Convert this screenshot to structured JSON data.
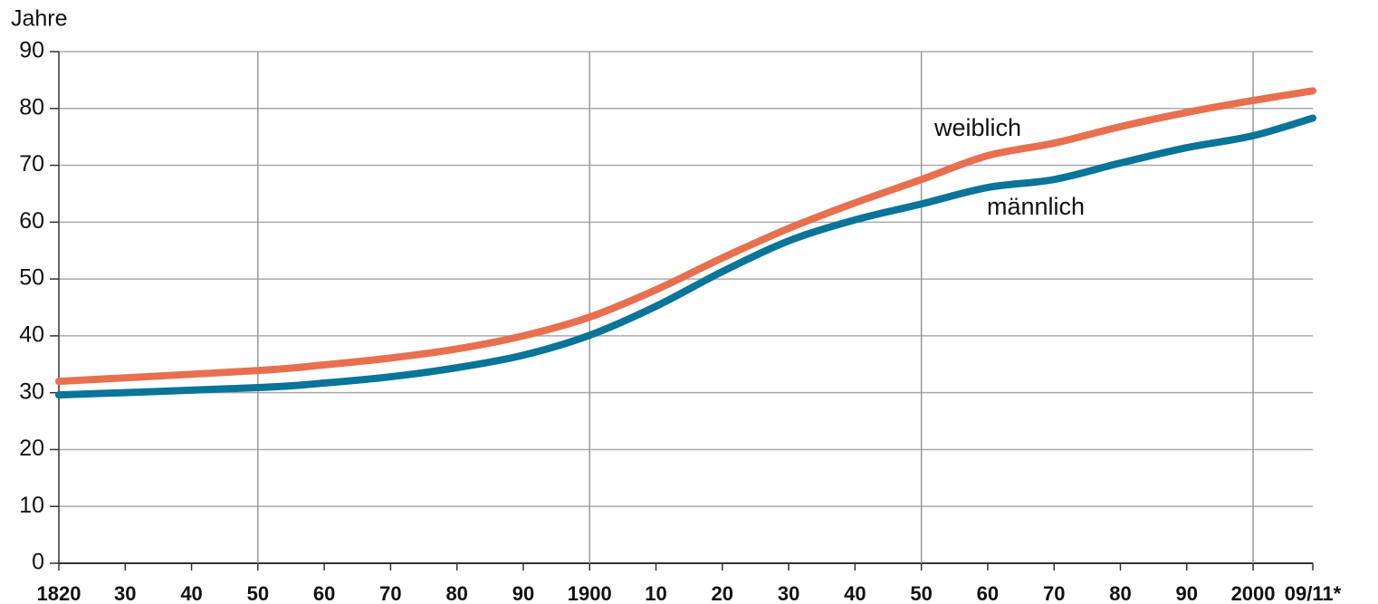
{
  "chart_data": {
    "type": "line",
    "y_label": "Jahre",
    "series": [
      {
        "name": "weiblich",
        "color": "#e8704f",
        "x": [
          1820,
          1850,
          1860,
          1870,
          1880,
          1890,
          1900,
          1910,
          1920,
          1930,
          1940,
          1950,
          1960,
          1970,
          1980,
          1990,
          2000,
          2009
        ],
        "values": [
          32.0,
          33.9,
          34.9,
          36.1,
          37.7,
          40.0,
          43.3,
          48.1,
          53.7,
          58.9,
          63.4,
          67.5,
          71.7,
          73.9,
          76.8,
          79.3,
          81.4,
          83.1
        ]
      },
      {
        "name": "männlich",
        "color": "#0a7499",
        "x": [
          1820,
          1850,
          1860,
          1870,
          1880,
          1890,
          1900,
          1910,
          1920,
          1930,
          1940,
          1950,
          1960,
          1970,
          1980,
          1990,
          2000,
          2009
        ],
        "values": [
          29.6,
          30.9,
          31.7,
          32.8,
          34.4,
          36.6,
          40.1,
          45.2,
          51.3,
          56.7,
          60.4,
          63.2,
          66.1,
          67.5,
          70.4,
          73.1,
          75.2,
          78.3
        ]
      }
    ],
    "xlim": [
      1820,
      2009
    ],
    "ylim": [
      0,
      90
    ],
    "yticks": [
      0,
      10,
      20,
      30,
      40,
      50,
      60,
      70,
      80,
      90
    ],
    "xticks": [
      1820,
      {
        "value": 1830,
        "label": "30"
      },
      {
        "value": 1840,
        "label": "40"
      },
      {
        "value": 1850,
        "label": "50"
      },
      {
        "value": 1860,
        "label": "60"
      },
      {
        "value": 1870,
        "label": "70"
      },
      {
        "value": 1880,
        "label": "80"
      },
      {
        "value": 1890,
        "label": "90"
      },
      1900,
      {
        "value": 1910,
        "label": "10"
      },
      {
        "value": 1920,
        "label": "20"
      },
      {
        "value": 1930,
        "label": "30"
      },
      {
        "value": 1940,
        "label": "40"
      },
      {
        "value": 1950,
        "label": "50"
      },
      {
        "value": 1960,
        "label": "60"
      },
      {
        "value": 1970,
        "label": "70"
      },
      {
        "value": 1980,
        "label": "80"
      },
      {
        "value": 1990,
        "label": "90"
      },
      2000,
      {
        "value": 2009,
        "label": "09/11*"
      }
    ],
    "x_grid": [
      1850,
      1900,
      1950,
      2000
    ],
    "grid": true
  }
}
